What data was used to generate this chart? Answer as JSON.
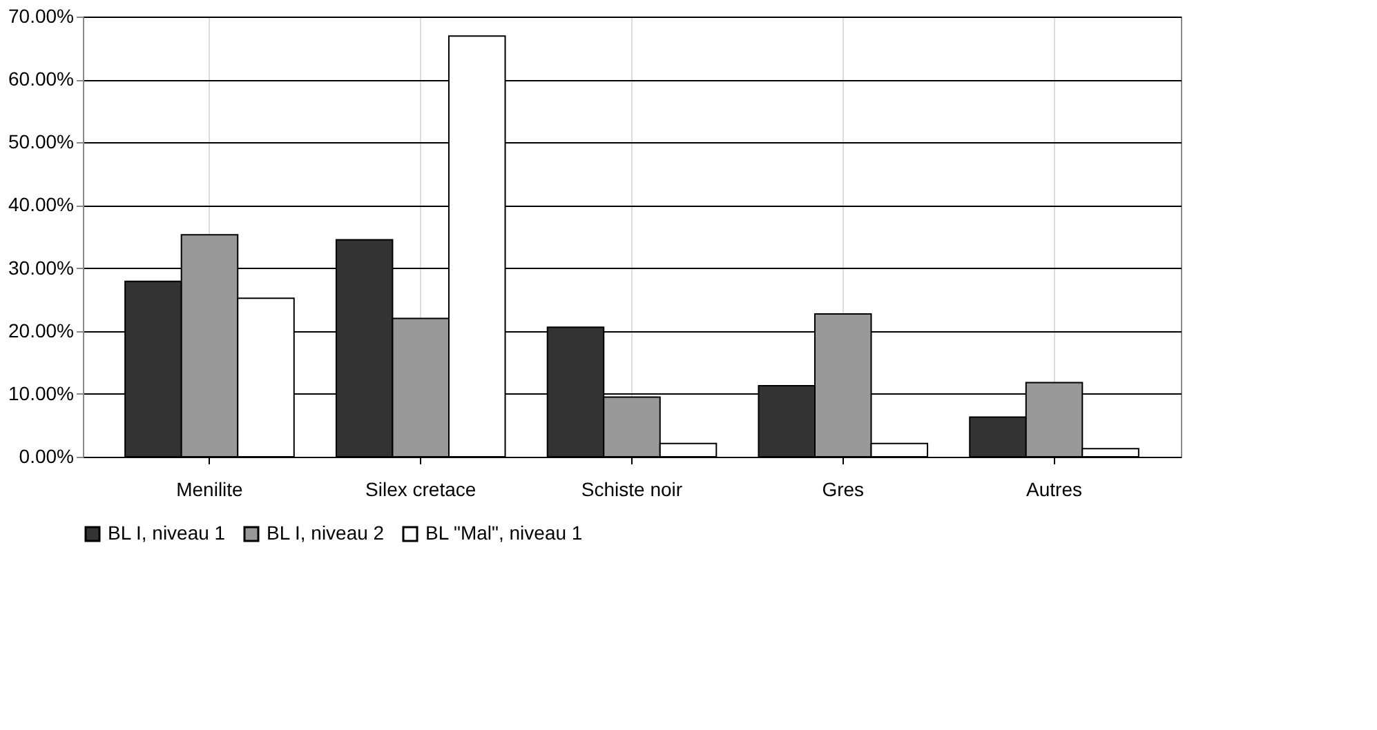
{
  "chart_data": {
    "type": "bar",
    "categories": [
      "Menilite",
      "Silex cretace",
      "Schiste noir",
      "Gres",
      "Autres"
    ],
    "series": [
      {
        "name": "BL I, niveau 1",
        "color": "#333333",
        "values": [
          27.9,
          34.5,
          20.6,
          11.3,
          6.3
        ]
      },
      {
        "name": "BL I, niveau 2",
        "color": "#999999",
        "values": [
          35.3,
          22.0,
          9.5,
          22.7,
          11.8
        ]
      },
      {
        "name": "BL \"Mal\", niveau 1",
        "color": "#ffffff",
        "values": [
          25.2,
          66.9,
          2.1,
          2.1,
          1.3
        ]
      }
    ],
    "ylim": [
      0,
      70
    ],
    "yticks": [
      {
        "value": 0,
        "label": "0.00%"
      },
      {
        "value": 10,
        "label": "10.00%"
      },
      {
        "value": 20,
        "label": "20.00%"
      },
      {
        "value": 30,
        "label": "30.00%"
      },
      {
        "value": 40,
        "label": "40.00%"
      },
      {
        "value": 50,
        "label": "50.00%"
      },
      {
        "value": 60,
        "label": "60.00%"
      },
      {
        "value": 70,
        "label": "70.00%"
      }
    ],
    "grid": true,
    "legend": "bottom"
  }
}
